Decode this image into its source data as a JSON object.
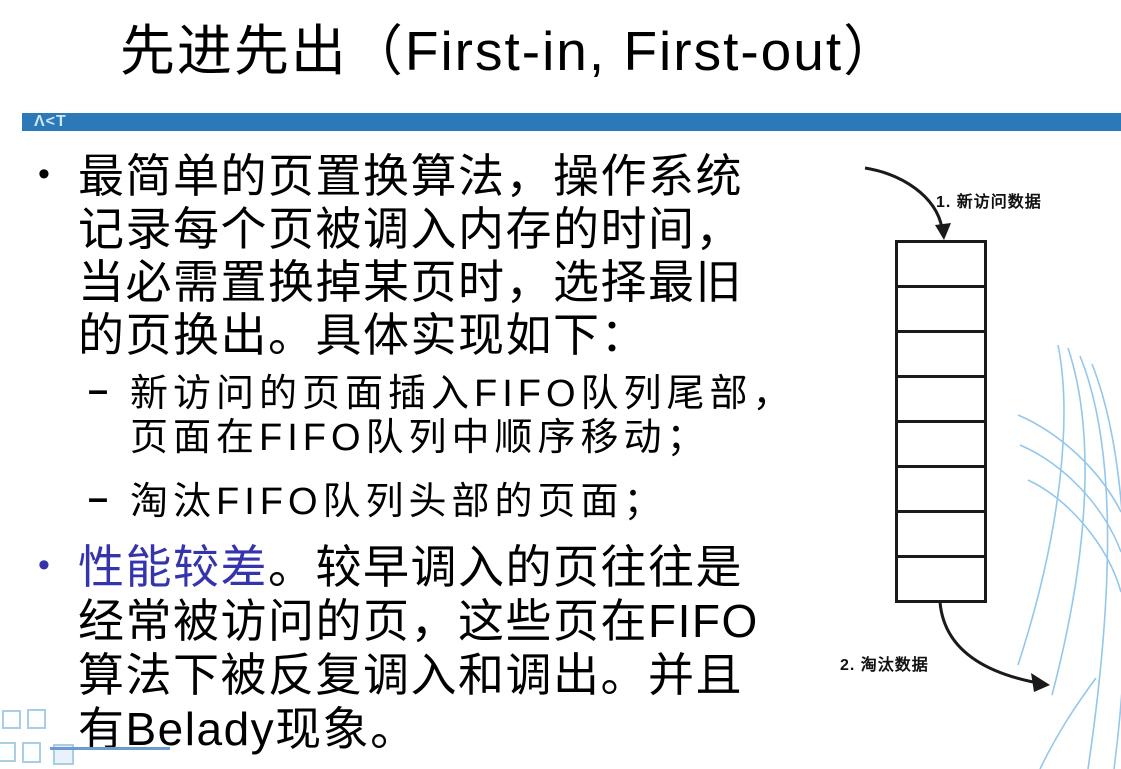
{
  "header": {
    "title": "先进先出（First-in, First-out）",
    "logo": "Λ<T"
  },
  "content": {
    "bullet1": {
      "marker": "•",
      "line1": "最简单的页置换算法，操作系统",
      "line2": "记录每个页被调入内存的时间，",
      "line3": "当必需置换掉某页时，选择最旧",
      "line4": "的页换出。具体实现如下："
    },
    "sub1": {
      "marker": "–",
      "line1": "新访问的页面插入FIFO队列尾部，",
      "line2": "页面在FIFO队列中顺序移动；"
    },
    "sub2": {
      "marker": "–",
      "line1": "淘汰FIFO队列头部的页面；"
    },
    "bullet2": {
      "marker": "•",
      "highlight": "性能较差",
      "line1_rest": "。较早调入的页往往是",
      "line2": "经常被访问的页，这些页在FIFO",
      "line3": "算法下被反复调入和调出。并且",
      "line4": "有Belady现象。"
    }
  },
  "diagram": {
    "label_top": "1. 新访问数据",
    "label_bottom": "2. 淘汰数据",
    "queue_cells": 8
  },
  "colors": {
    "accent_bar": "#2B79B9",
    "highlight_text": "#3434AD",
    "decor_swoosh": "#8EC5EA",
    "decor_square": "#A9CDE5",
    "decor_line": "#6B9BD2"
  }
}
